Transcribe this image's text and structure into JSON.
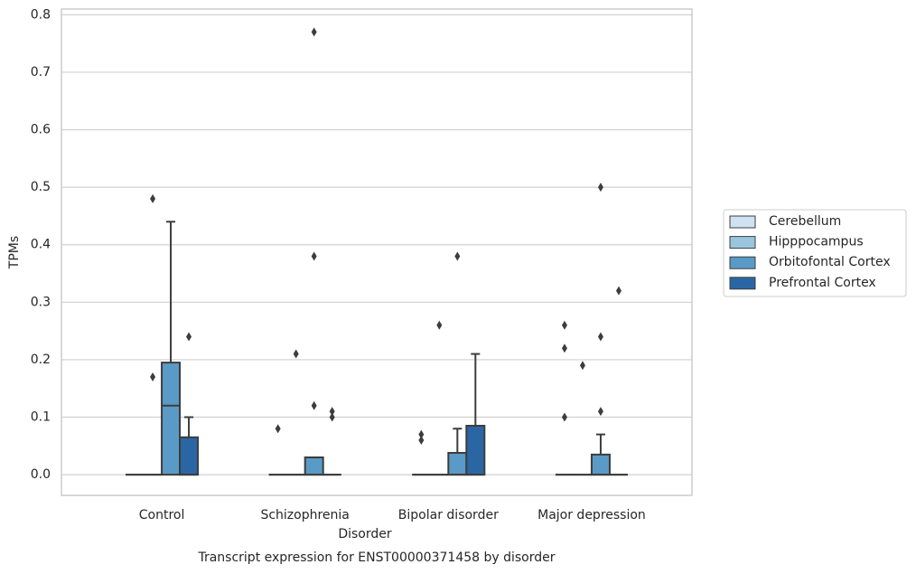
{
  "chart_data": {
    "type": "box",
    "xlabel": "Disorder",
    "ylabel": "TPMs",
    "caption": "Transcript expression for ENST00000371458 by disorder",
    "categories": [
      "Control",
      "Schizophrenia",
      "Bipolar disorder",
      "Major depression"
    ],
    "ylim": [
      -0.036,
      0.81
    ],
    "yticks": [
      {
        "value": 0,
        "label": "0.0"
      },
      0.1,
      0.2,
      0.3,
      0.4,
      0.5,
      0.6,
      0.7,
      0.8
    ],
    "grid": true,
    "legend": "right",
    "series": [
      {
        "name": "Cerebellum",
        "color": "#d0e1f2",
        "boxes": [
          {
            "min": 0,
            "q1": 0,
            "median": 0,
            "q3": 0,
            "max": 0,
            "outliers": []
          },
          {
            "min": 0,
            "q1": 0,
            "median": 0,
            "q3": 0,
            "max": 0,
            "outliers": [
              0.08
            ]
          },
          {
            "min": 0,
            "q1": 0,
            "median": 0,
            "q3": 0,
            "max": 0,
            "outliers": [
              0.07,
              0.06
            ]
          },
          {
            "min": 0,
            "q1": 0,
            "median": 0,
            "q3": 0,
            "max": 0,
            "outliers": [
              0.26,
              0.22,
              0.1
            ]
          }
        ]
      },
      {
        "name": "Hipppocampus",
        "color": "#9ac5de",
        "boxes": [
          {
            "min": 0,
            "q1": 0,
            "median": 0,
            "q3": 0,
            "max": 0,
            "outliers": [
              0.48,
              0.17
            ]
          },
          {
            "min": 0,
            "q1": 0,
            "median": 0,
            "q3": 0,
            "max": 0,
            "outliers": [
              0.21
            ]
          },
          {
            "min": 0,
            "q1": 0,
            "median": 0,
            "q3": 0,
            "max": 0,
            "outliers": [
              0.26
            ]
          },
          {
            "min": 0,
            "q1": 0,
            "median": 0,
            "q3": 0,
            "max": 0,
            "outliers": [
              0.19
            ]
          }
        ]
      },
      {
        "name": "Orbitofontal Cortex",
        "color": "#5a9ac6",
        "boxes": [
          {
            "min": 0,
            "q1": 0,
            "median": 0.12,
            "q3": 0.195,
            "max": 0.44,
            "outliers": []
          },
          {
            "min": 0,
            "q1": 0,
            "median": 0,
            "q3": 0.03,
            "max": 0.03,
            "outliers": [
              0.77,
              0.38,
              0.12
            ]
          },
          {
            "min": 0,
            "q1": 0,
            "median": 0,
            "q3": 0.038,
            "max": 0.08,
            "outliers": [
              0.38
            ]
          },
          {
            "min": 0,
            "q1": 0,
            "median": 0,
            "q3": 0.035,
            "max": 0.07,
            "outliers": [
              0.5,
              0.24,
              0.11
            ]
          }
        ]
      },
      {
        "name": "Prefrontal Cortex",
        "color": "#2a66a4",
        "boxes": [
          {
            "min": 0,
            "q1": 0,
            "median": 0,
            "q3": 0.065,
            "max": 0.1,
            "outliers": [
              0.24
            ]
          },
          {
            "min": 0,
            "q1": 0,
            "median": 0,
            "q3": 0,
            "max": 0,
            "outliers": [
              0.11,
              0.1
            ]
          },
          {
            "min": 0,
            "q1": 0,
            "median": 0,
            "q3": 0.085,
            "max": 0.21,
            "outliers": []
          },
          {
            "min": 0,
            "q1": 0,
            "median": 0,
            "q3": 0,
            "max": 0,
            "outliers": [
              0.32
            ]
          }
        ]
      }
    ]
  }
}
